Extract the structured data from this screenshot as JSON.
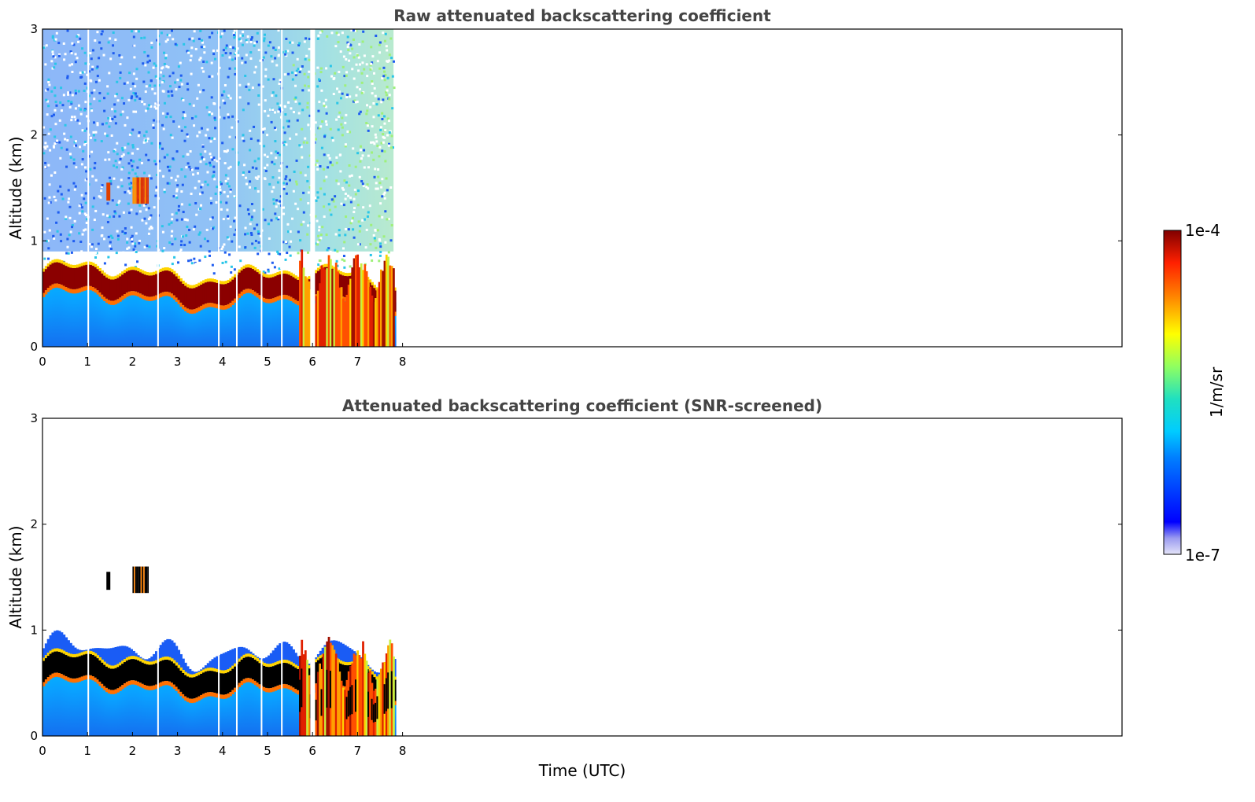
{
  "chart_data": [
    {
      "type": "heatmap",
      "title": "Raw attenuated backscattering coefficient",
      "xlabel": "",
      "ylabel": "Altitude (km)",
      "xlim": [
        0,
        24
      ],
      "ylim": [
        0,
        3
      ],
      "x_ticks": [
        "0",
        "1",
        "2",
        "3",
        "4",
        "5",
        "6",
        "7",
        "8"
      ],
      "y_ticks": [
        "0",
        "1",
        "2",
        "3"
      ],
      "data_extent_time_utc": [
        0,
        7.8
      ],
      "layers": [
        {
          "kind": "noisy background",
          "altitude_km": [
            0.9,
            3.0
          ],
          "level": "low-mid, blue/green speckle"
        },
        {
          "kind": "boundary layer aerosol",
          "altitude_km": [
            0.0,
            0.5
          ],
          "level": "mid, blue/cyan"
        },
        {
          "kind": "strong layer (top of boundary layer)",
          "altitude_km": [
            0.45,
            0.75
          ],
          "level": "high, dark red"
        },
        {
          "kind": "cloud patch",
          "time_utc": [
            2.0,
            2.35
          ],
          "altitude_km": [
            1.35,
            1.6
          ],
          "level": "high"
        },
        {
          "kind": "convective plumes",
          "time_utc": [
            5.7,
            7.8
          ],
          "altitude_km": [
            0.0,
            1.0
          ],
          "level": "high, orange/red"
        }
      ],
      "gaps_time_utc": [
        1.0,
        2.55,
        3.9,
        4.3,
        4.85,
        5.3,
        5.95
      ]
    },
    {
      "type": "heatmap",
      "title": "Attenuated backscattering coefficient (SNR-screened)",
      "xlabel": "Time (UTC)",
      "ylabel": "Altitude (km)",
      "xlim": [
        0,
        24
      ],
      "ylim": [
        0,
        3
      ],
      "x_ticks": [
        "0",
        "1",
        "2",
        "3",
        "4",
        "5",
        "6",
        "7",
        "8"
      ],
      "y_ticks": [
        "0",
        "1",
        "2",
        "3"
      ],
      "data_extent_time_utc": [
        0,
        7.8
      ],
      "layers": [
        {
          "kind": "boundary layer aerosol",
          "altitude_km": [
            0.0,
            0.8
          ],
          "level": "mid, blue/cyan"
        },
        {
          "kind": "strong layer (top of boundary layer)",
          "altitude_km": [
            0.45,
            0.75
          ],
          "level": "saturated, black"
        },
        {
          "kind": "cloud patch",
          "time_utc": [
            2.0,
            2.35
          ],
          "altitude_km": [
            1.35,
            1.6
          ],
          "level": "saturated"
        },
        {
          "kind": "convective plumes",
          "time_utc": [
            5.7,
            7.8
          ],
          "altitude_km": [
            0.0,
            1.0
          ],
          "level": "high, orange/red"
        }
      ]
    }
  ],
  "colorbar": {
    "label": "1/m/sr",
    "top_label": "1e-4",
    "bottom_label": "1e-7",
    "colormap": "jet",
    "scale": "log"
  }
}
